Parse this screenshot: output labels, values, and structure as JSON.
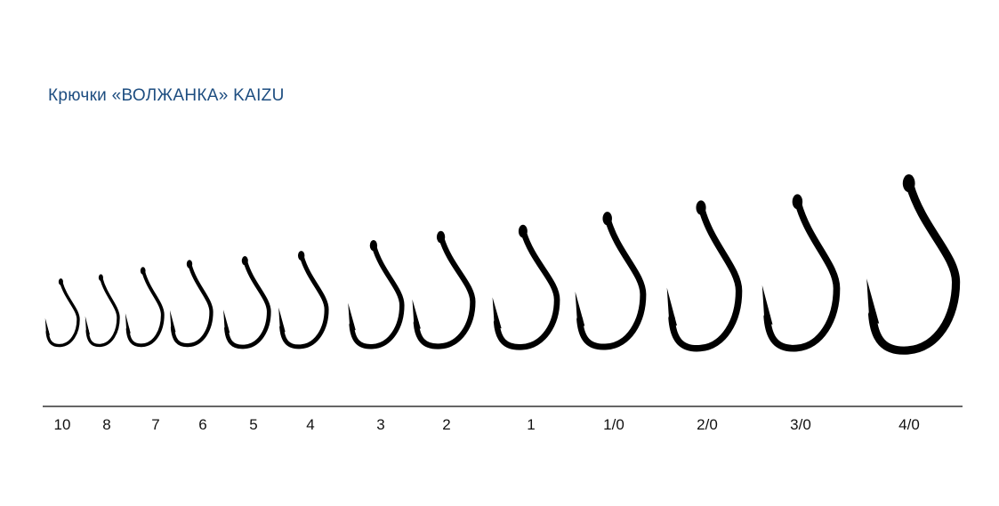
{
  "title": "Крючки «ВОЛЖАНКА» KAIZU",
  "colors": {
    "title": "#1d4d80",
    "hooks": "#000000",
    "baseline": "#333333"
  },
  "hook_sizes": [
    "10",
    "8",
    "7",
    "6",
    "5",
    "4",
    "3",
    "2",
    "1",
    "1/0",
    "2/0",
    "3/0",
    "4/0"
  ]
}
